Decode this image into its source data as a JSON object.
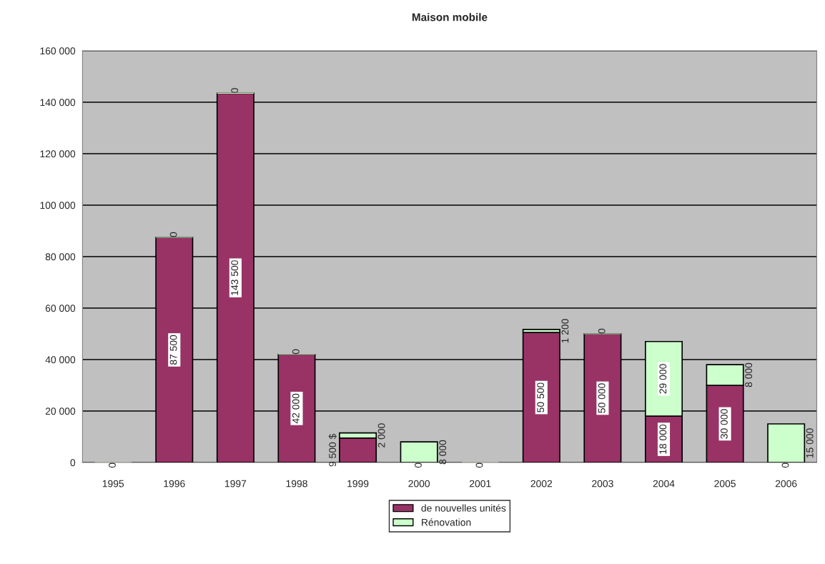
{
  "chart_data": {
    "type": "bar",
    "title": "Maison mobile",
    "stacked": true,
    "categories": [
      "1995",
      "1996",
      "1997",
      "1998",
      "1999",
      "2000",
      "2001",
      "2002",
      "2003",
      "2004",
      "2005",
      "2006"
    ],
    "series": [
      {
        "name": "de nouvelles unités",
        "color": "#993366",
        "values": [
          0,
          87500,
          143500,
          42000,
          9500,
          0,
          0,
          50500,
          50000,
          18000,
          30000,
          0
        ],
        "value_labels": [
          "0",
          "87 500",
          "143 500",
          "42 000",
          "9 500 $",
          "0",
          "0",
          "50 500",
          "50 000",
          "18 000",
          "30 000",
          "0"
        ]
      },
      {
        "name": "Rénovation",
        "color": "#ccffcc",
        "values": [
          0,
          0,
          0,
          0,
          2000,
          8000,
          0,
          1200,
          0,
          29000,
          8000,
          15000
        ],
        "value_labels": [
          null,
          "0",
          "0",
          "0",
          "2 000",
          "8 000",
          null,
          "1 200",
          "0",
          "29 000",
          "8 000",
          "15 000"
        ]
      }
    ],
    "ylim": [
      0,
      160000
    ],
    "yticks": [
      {
        "value": 0,
        "label": "0"
      },
      {
        "value": 20000,
        "label": "20 000"
      },
      {
        "value": 40000,
        "label": "40 000"
      },
      {
        "value": 60000,
        "label": "60 000"
      },
      {
        "value": 80000,
        "label": "80 000"
      },
      {
        "value": 100000,
        "label": "100 000"
      },
      {
        "value": 120000,
        "label": "120 000"
      },
      {
        "value": 140000,
        "label": "140 000"
      },
      {
        "value": 160000,
        "label": "160 000"
      }
    ],
    "grid": "y",
    "legend": "bottom"
  }
}
